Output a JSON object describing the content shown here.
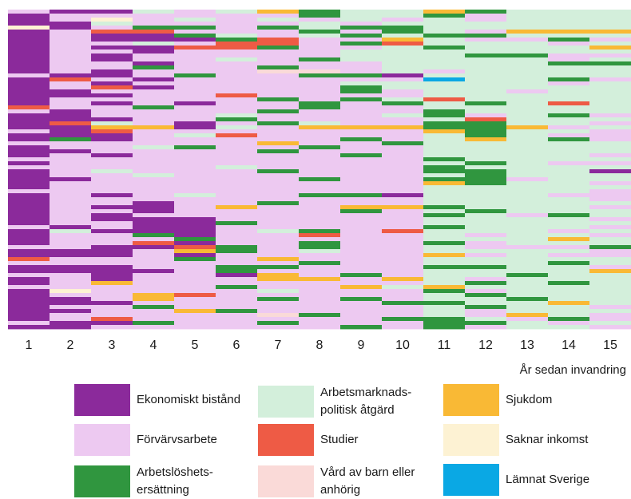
{
  "chart_data": {
    "type": "heatmap",
    "title": "",
    "xlabel": "År sedan invandring",
    "ylabel": "",
    "categories": [
      "1",
      "2",
      "3",
      "4",
      "5",
      "6",
      "7",
      "8",
      "9",
      "10",
      "11",
      "12",
      "13",
      "14",
      "15"
    ],
    "legend_position": "bottom",
    "legend": [
      {
        "key": "EB",
        "label": "Ekonomiskt bistånd",
        "color": "#8B2A9B"
      },
      {
        "key": "AP",
        "label": "Arbetsmarknads-\npolitisk åtgärd",
        "color": "#D3EFDB"
      },
      {
        "key": "SJ",
        "label": "Sjukdom",
        "color": "#F9B935"
      },
      {
        "key": "FA",
        "label": "Förvärvsarbete",
        "color": "#EDC9F1"
      },
      {
        "key": "ST",
        "label": "Studier",
        "color": "#EE5B45"
      },
      {
        "key": "SI",
        "label": "Saknar inkomst",
        "color": "#FDF2D3"
      },
      {
        "key": "AE",
        "label": "Arbetslöshets-\nersättning",
        "color": "#30963F"
      },
      {
        "key": "VB",
        "label": "Vård av barn eller\nanhörig",
        "color": "#FADAD8"
      },
      {
        "key": "LS",
        "label": "Lämnat Sverige",
        "color": "#0AA8E4"
      }
    ],
    "columns": [
      [
        "FA",
        "EB",
        "EB",
        "EB",
        "SI",
        "EB",
        "EB",
        "EB",
        "EB",
        "EB",
        "EB",
        "EB",
        "EB",
        "EB",
        "EB",
        "EB",
        "FA",
        "EB",
        "EB",
        "EB",
        "EB",
        "EB",
        "EB",
        "EB",
        "ST",
        "FA",
        "EB",
        "EB",
        "EB",
        "EB",
        "FA",
        "EB",
        "EB",
        "FA",
        "EB",
        "EB",
        "EB",
        "FA",
        "EB",
        "FA",
        "EB",
        "EB",
        "EB",
        "EB",
        "EB",
        "FA",
        "EB",
        "EB",
        "EB",
        "EB",
        "EB",
        "EB",
        "EB",
        "EB",
        "FA",
        "EB",
        "EB",
        "EB",
        "EB",
        "FA",
        "EB",
        "EB",
        "ST",
        "FA",
        "EB",
        "EB",
        "FA",
        "EB",
        "EB",
        "FA",
        "EB",
        "EB",
        "EB",
        "EB",
        "EB",
        "EB",
        "EB",
        "EB",
        "FA",
        "EB"
      ],
      [
        "EB",
        "FA",
        "FA",
        "EB",
        "EB",
        "FA",
        "FA",
        "FA",
        "FA",
        "FA",
        "FA",
        "FA",
        "FA",
        "FA",
        "FA",
        "FA",
        "EB",
        "ST",
        "FA",
        "FA",
        "EB",
        "EB",
        "FA",
        "FA",
        "FA",
        "EB",
        "EB",
        "EB",
        "ST",
        "EB",
        "EB",
        "EB",
        "AE",
        "FA",
        "FA",
        "EB",
        "FA",
        "FA",
        "FA",
        "FA",
        "FA",
        "FA",
        "EB",
        "FA",
        "FA",
        "FA",
        "FA",
        "FA",
        "FA",
        "FA",
        "FA",
        "FA",
        "FA",
        "FA",
        "EB",
        "AP",
        "FA",
        "FA",
        "FA",
        "FA",
        "EB",
        "EB",
        "FA",
        "FA",
        "EB",
        "EB",
        "FA",
        "FA",
        "FA",
        "FA",
        "SI",
        "FA",
        "EB",
        "EB",
        "FA",
        "EB",
        "FA",
        "FA",
        "EB",
        "EB"
      ],
      [
        "EB",
        "FA",
        "SI",
        "AP",
        "FA",
        "ST",
        "EB",
        "EB",
        "FA",
        "EB",
        "FA",
        "EB",
        "EB",
        "FA",
        "FA",
        "EB",
        "EB",
        "FA",
        "EB",
        "ST",
        "FA",
        "EB",
        "FA",
        "EB",
        "FA",
        "FA",
        "FA",
        "EB",
        "AP",
        "SJ",
        "ST",
        "EB",
        "EB",
        "FA",
        "FA",
        "FA",
        "EB",
        "FA",
        "FA",
        "FA",
        "AP",
        "FA",
        "FA",
        "FA",
        "FA",
        "FA",
        "EB",
        "FA",
        "FA",
        "EB",
        "FA",
        "EB",
        "EB",
        "FA",
        "FA",
        "EB",
        "FA",
        "FA",
        "FA",
        "EB",
        "EB",
        "EB",
        "FA",
        "FA",
        "EB",
        "EB",
        "EB",
        "EB",
        "SJ",
        "FA",
        "FA",
        "FA",
        "FA",
        "EB",
        "FA",
        "FA",
        "FA",
        "ST",
        "EB",
        "FA"
      ],
      [
        "AP",
        "FA",
        "FA",
        "FA",
        "AE",
        "ST",
        "EB",
        "EB",
        "AP",
        "EB",
        "EB",
        "FA",
        "FA",
        "EB",
        "AE",
        "FA",
        "FA",
        "EB",
        "FA",
        "EB",
        "FA",
        "FA",
        "FA",
        "FA",
        "AE",
        "FA",
        "FA",
        "FA",
        "FA",
        "SJ",
        "FA",
        "FA",
        "FA",
        "FA",
        "AP",
        "FA",
        "FA",
        "FA",
        "FA",
        "FA",
        "FA",
        "AP",
        "FA",
        "FA",
        "FA",
        "FA",
        "FA",
        "FA",
        "EB",
        "EB",
        "EB",
        "FA",
        "EB",
        "EB",
        "EB",
        "EB",
        "AE",
        "FA",
        "ST",
        "EB",
        "FA",
        "FA",
        "FA",
        "FA",
        "FA",
        "EB",
        "FA",
        "FA",
        "FA",
        "FA",
        "FA",
        "SJ",
        "SJ",
        "FA",
        "AE",
        "FA",
        "FA",
        "FA",
        "AE",
        "FA"
      ],
      [
        "FA",
        "FA",
        "AP",
        "FA",
        "AE",
        "FA",
        "AE",
        "EB",
        "FA",
        "ST",
        "FA",
        "FA",
        "FA",
        "FA",
        "FA",
        "FA",
        "AE",
        "FA",
        "FA",
        "FA",
        "FA",
        "FA",
        "FA",
        "EB",
        "FA",
        "FA",
        "FA",
        "FA",
        "EB",
        "EB",
        "FA",
        "AP",
        "FA",
        "FA",
        "AE",
        "FA",
        "FA",
        "FA",
        "FA",
        "FA",
        "FA",
        "FA",
        "FA",
        "FA",
        "FA",
        "FA",
        "AP",
        "FA",
        "FA",
        "FA",
        "FA",
        "FA",
        "EB",
        "EB",
        "EB",
        "EB",
        "EB",
        "AE",
        "EB",
        "ST",
        "SJ",
        "EB",
        "AE",
        "FA",
        "FA",
        "FA",
        "FA",
        "FA",
        "FA",
        "FA",
        "FA",
        "ST",
        "FA",
        "FA",
        "FA",
        "SJ",
        "FA",
        "FA",
        "FA",
        "FA"
      ],
      [
        "AP",
        "FA",
        "FA",
        "FA",
        "FA",
        "FA",
        "AP",
        "AE",
        "ST",
        "ST",
        "FA",
        "FA",
        "AP",
        "FA",
        "FA",
        "FA",
        "FA",
        "FA",
        "FA",
        "FA",
        "FA",
        "ST",
        "FA",
        "FA",
        "FA",
        "FA",
        "AP",
        "AE",
        "FA",
        "AP",
        "FA",
        "ST",
        "FA",
        "FA",
        "FA",
        "FA",
        "FA",
        "FA",
        "FA",
        "AP",
        "FA",
        "FA",
        "FA",
        "FA",
        "FA",
        "FA",
        "FA",
        "FA",
        "FA",
        "SJ",
        "FA",
        "FA",
        "FA",
        "AE",
        "FA",
        "FA",
        "FA",
        "FA",
        "FA",
        "AE",
        "AE",
        "FA",
        "FA",
        "FA",
        "AE",
        "AE",
        "EB",
        "FA",
        "FA",
        "AE",
        "FA",
        "FA",
        "FA",
        "FA",
        "FA",
        "AE",
        "FA",
        "FA",
        "FA",
        "FA"
      ],
      [
        "SJ",
        "FA",
        "AP",
        "FA",
        "AE",
        "FA",
        "FA",
        "ST",
        "ST",
        "AE",
        "FA",
        "FA",
        "FA",
        "FA",
        "AE",
        "VB",
        "FA",
        "FA",
        "FA",
        "FA",
        "FA",
        "FA",
        "AE",
        "FA",
        "FA",
        "AE",
        "FA",
        "FA",
        "AE",
        "FA",
        "FA",
        "FA",
        "FA",
        "SJ",
        "FA",
        "AE",
        "FA",
        "FA",
        "FA",
        "FA",
        "AE",
        "FA",
        "FA",
        "FA",
        "FA",
        "FA",
        "FA",
        "FA",
        "AE",
        "FA",
        "FA",
        "FA",
        "FA",
        "FA",
        "FA",
        "AP",
        "FA",
        "FA",
        "FA",
        "FA",
        "FA",
        "FA",
        "SJ",
        "FA",
        "AE",
        "FA",
        "SJ",
        "SJ",
        "FA",
        "FA",
        "AP",
        "FA",
        "AE",
        "FA",
        "FA",
        "FA",
        "VB",
        "FA",
        "AE",
        "FA"
      ],
      [
        "AE",
        "AE",
        "FA",
        "AP",
        "AP",
        "AE",
        "AP",
        "FA",
        "FA",
        "FA",
        "FA",
        "FA",
        "AE",
        "FA",
        "FA",
        "VB",
        "AE",
        "FA",
        "FA",
        "FA",
        "FA",
        "FA",
        "FA",
        "AE",
        "AE",
        "FA",
        "FA",
        "FA",
        "AP",
        "SJ",
        "FA",
        "FA",
        "FA",
        "FA",
        "AE",
        "FA",
        "FA",
        "FA",
        "FA",
        "FA",
        "FA",
        "FA",
        "AE",
        "FA",
        "FA",
        "FA",
        "AE",
        "FA",
        "FA",
        "FA",
        "FA",
        "FA",
        "FA",
        "FA",
        "FA",
        "AE",
        "ST",
        "FA",
        "AE",
        "AE",
        "AP",
        "FA",
        "FA",
        "AE",
        "FA",
        "FA",
        "FA",
        "SJ",
        "FA",
        "FA",
        "FA",
        "FA",
        "FA",
        "FA",
        "FA",
        "FA",
        "AE",
        "FA",
        "FA",
        "FA"
      ],
      [
        "AP",
        "AP",
        "AP",
        "FA",
        "AE",
        "FA",
        "AE",
        "FA",
        "AE",
        "FA",
        "AP",
        "AP",
        "AP",
        "FA",
        "FA",
        "FA",
        "AE",
        "FA",
        "AP",
        "AE",
        "AE",
        "FA",
        "AE",
        "FA",
        "FA",
        "FA",
        "FA",
        "FA",
        "FA",
        "SJ",
        "FA",
        "FA",
        "AE",
        "FA",
        "FA",
        "FA",
        "AE",
        "FA",
        "FA",
        "FA",
        "FA",
        "FA",
        "FA",
        "FA",
        "FA",
        "FA",
        "AE",
        "FA",
        "FA",
        "SJ",
        "AE",
        "FA",
        "FA",
        "FA",
        "FA",
        "FA",
        "FA",
        "FA",
        "FA",
        "FA",
        "FA",
        "FA",
        "FA",
        "FA",
        "FA",
        "FA",
        "AE",
        "FA",
        "FA",
        "SJ",
        "FA",
        "FA",
        "AE",
        "FA",
        "FA",
        "FA",
        "FA",
        "FA",
        "FA",
        "AE"
      ],
      [
        "AP",
        "AP",
        "FA",
        "AP",
        "AE",
        "AE",
        "AP",
        "SJ",
        "ST",
        "AP",
        "AP",
        "AP",
        "AP",
        "AP",
        "AP",
        "AP",
        "EB",
        "FA",
        "AP",
        "AP",
        "FA",
        "FA",
        "AP",
        "AE",
        "FA",
        "FA",
        "AP",
        "FA",
        "FA",
        "SJ",
        "FA",
        "FA",
        "FA",
        "AE",
        "FA",
        "FA",
        "FA",
        "FA",
        "FA",
        "FA",
        "FA",
        "FA",
        "FA",
        "FA",
        "FA",
        "FA",
        "EB",
        "FA",
        "FA",
        "SJ",
        "FA",
        "FA",
        "FA",
        "FA",
        "FA",
        "ST",
        "FA",
        "FA",
        "FA",
        "FA",
        "FA",
        "FA",
        "FA",
        "FA",
        "FA",
        "FA",
        "FA",
        "SJ",
        "FA",
        "AP",
        "FA",
        "FA",
        "FA",
        "AE",
        "FA",
        "FA",
        "FA",
        "AE",
        "FA",
        "FA"
      ],
      [
        "SJ",
        "AE",
        "AP",
        "AP",
        "AP",
        "AP",
        "AE",
        "AP",
        "AP",
        "AE",
        "AP",
        "AP",
        "AP",
        "AP",
        "AP",
        "FA",
        "AP",
        "LS",
        "AP",
        "AP",
        "AP",
        "AP",
        "ST",
        "AP",
        "AP",
        "AE",
        "AE",
        "AP",
        "AE",
        "AE",
        "SJ",
        "AP",
        "AP",
        "AP",
        "AP",
        "AP",
        "AP",
        "AE",
        "AP",
        "AE",
        "AE",
        "AP",
        "AE",
        "SJ",
        "AP",
        "AP",
        "AP",
        "AP",
        "AP",
        "AE",
        "AP",
        "AE",
        "AP",
        "AP",
        "AE",
        "AP",
        "AP",
        "AP",
        "AE",
        "AP",
        "AP",
        "SJ",
        "AP",
        "AP",
        "AE",
        "AP",
        "AP",
        "AP",
        "AP",
        "SJ",
        "AE",
        "AP",
        "AP",
        "AE",
        "AP",
        "AP",
        "AP",
        "AE",
        "AE",
        "AE"
      ],
      [
        "AE",
        "FA",
        "FA",
        "AP",
        "AP",
        "FA",
        "AE",
        "FA",
        "AP",
        "AP",
        "AP",
        "AE",
        "AP",
        "AP",
        "AP",
        "AP",
        "AP",
        "AP",
        "AP",
        "AP",
        "AP",
        "AP",
        "AP",
        "AE",
        "AP",
        "AP",
        "FA",
        "ST",
        "AE",
        "AE",
        "AE",
        "AE",
        "SJ",
        "AP",
        "AP",
        "AP",
        "AP",
        "AP",
        "AE",
        "AP",
        "AE",
        "AE",
        "AE",
        "AE",
        "AP",
        "AP",
        "AP",
        "AP",
        "AP",
        "AP",
        "AE",
        "AP",
        "AP",
        "AP",
        "AP",
        "AP",
        "FA",
        "AP",
        "FA",
        "FA",
        "AP",
        "FA",
        "AP",
        "AP",
        "AE",
        "AP",
        "AP",
        "FA",
        "AE",
        "AP",
        "FA",
        "AE",
        "AP",
        "AP",
        "AE",
        "FA",
        "FA",
        "AP",
        "AE",
        "FA"
      ],
      [
        "AP",
        "AP",
        "AP",
        "AP",
        "AP",
        "SJ",
        "AP",
        "FA",
        "AP",
        "AP",
        "AP",
        "AE",
        "AP",
        "AP",
        "AP",
        "AP",
        "AP",
        "AP",
        "AP",
        "AP",
        "FA",
        "AP",
        "AP",
        "AP",
        "AP",
        "AP",
        "AP",
        "AP",
        "AP",
        "SJ",
        "AP",
        "AP",
        "AP",
        "AP",
        "AP",
        "AP",
        "AP",
        "AP",
        "AP",
        "AP",
        "AP",
        "AP",
        "FA",
        "AP",
        "AP",
        "AP",
        "AP",
        "AP",
        "AP",
        "AP",
        "AP",
        "FA",
        "AP",
        "AP",
        "AP",
        "AP",
        "AP",
        "AP",
        "AP",
        "FA",
        "AP",
        "AP",
        "AP",
        "AP",
        "AP",
        "AP",
        "AE",
        "AP",
        "AP",
        "AP",
        "AP",
        "AP",
        "AE",
        "AP",
        "AP",
        "AP",
        "SJ",
        "FA",
        "AP",
        "AP"
      ],
      [
        "AP",
        "AP",
        "AP",
        "AP",
        "AP",
        "SJ",
        "AP",
        "AE",
        "FA",
        "AP",
        "AP",
        "FA",
        "FA",
        "AE",
        "AP",
        "AP",
        "AP",
        "AE",
        "FA",
        "AP",
        "AP",
        "AP",
        "AP",
        "ST",
        "AP",
        "AP",
        "AE",
        "AP",
        "AP",
        "FA",
        "AP",
        "FA",
        "AE",
        "AP",
        "AP",
        "AP",
        "AP",
        "AP",
        "FA",
        "AP",
        "AP",
        "AP",
        "AP",
        "AP",
        "AP",
        "AP",
        "FA",
        "AP",
        "AP",
        "AP",
        "AP",
        "AE",
        "AP",
        "AP",
        "AP",
        "FA",
        "AP",
        "SJ",
        "AP",
        "FA",
        "AP",
        "FA",
        "AP",
        "AE",
        "AP",
        "AP",
        "AP",
        "AP",
        "AE",
        "AP",
        "AP",
        "AP",
        "AP",
        "SJ",
        "AP",
        "AP",
        "AP",
        "AE",
        "FA",
        "AP"
      ],
      [
        "AP",
        "AP",
        "AP",
        "AP",
        "AP",
        "SJ",
        "AP",
        "FA",
        "AP",
        "SJ",
        "AP",
        "FA",
        "AP",
        "AE",
        "AP",
        "AP",
        "AP",
        "FA",
        "AP",
        "AP",
        "AP",
        "AP",
        "AP",
        "AP",
        "AP",
        "AP",
        "FA",
        "AP",
        "FA",
        "AP",
        "FA",
        "FA",
        "FA",
        "AP",
        "AP",
        "AP",
        "FA",
        "AP",
        "FA",
        "AP",
        "EB",
        "AP",
        "AP",
        "FA",
        "AP",
        "FA",
        "FA",
        "FA",
        "AP",
        "FA",
        "AP",
        "AP",
        "FA",
        "AP",
        "FA",
        "AP",
        "FA",
        "AP",
        "AP",
        "AE",
        "FA",
        "FA",
        "AP",
        "AP",
        "FA",
        "SJ",
        "AP",
        "AP",
        "AP",
        "AP",
        "AP",
        "AP",
        "AP",
        "AP",
        "FA",
        "AP",
        "FA",
        "FA",
        "AP",
        "FA"
      ]
    ]
  }
}
